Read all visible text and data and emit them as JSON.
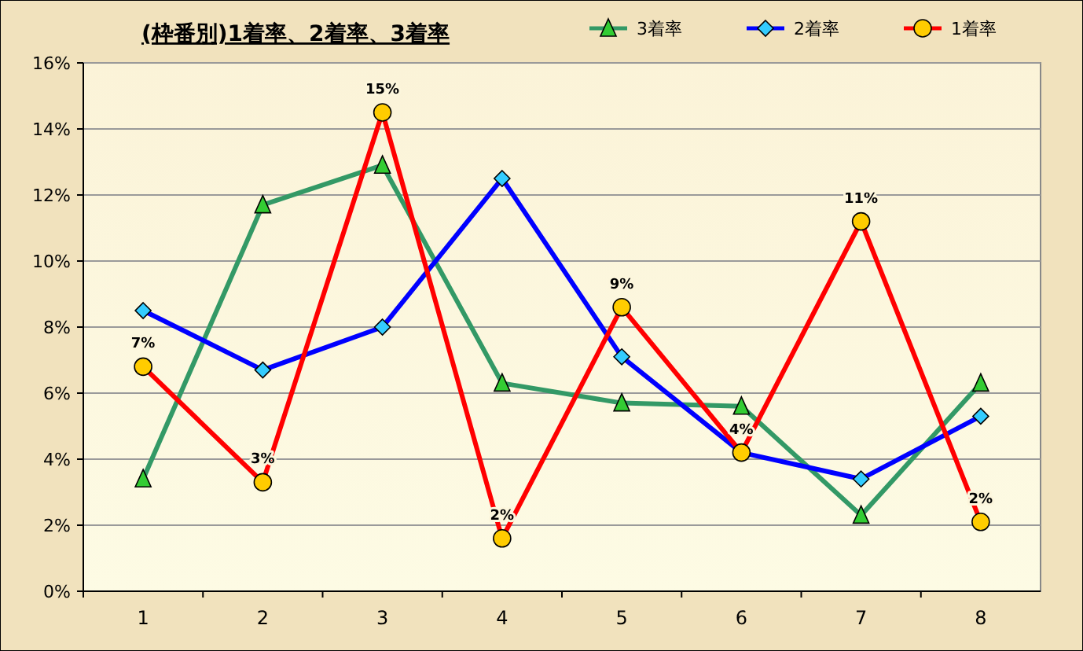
{
  "chart_data": {
    "type": "line",
    "title": "(枠番別)1着率、2着率、3着率",
    "categories": [
      "1",
      "2",
      "3",
      "4",
      "5",
      "6",
      "7",
      "8"
    ],
    "ylim": [
      0,
      16
    ],
    "yticks": [
      {
        "value": 0,
        "label": "0%"
      },
      {
        "value": 2,
        "label": "2%"
      },
      {
        "value": 4,
        "label": "4%"
      },
      {
        "value": 6,
        "label": "6%"
      },
      {
        "value": 8,
        "label": "8%"
      },
      {
        "value": 10,
        "label": "10%"
      },
      {
        "value": 12,
        "label": "12%"
      },
      {
        "value": 14,
        "label": "14%"
      },
      {
        "value": 16,
        "label": "16%"
      }
    ],
    "grid": "y",
    "legend": "top right",
    "line_style": "solid",
    "series": [
      {
        "name": "3着率",
        "color": "#339966",
        "marker": "triangle",
        "values": [
          3.4,
          11.7,
          12.9,
          6.3,
          5.7,
          5.6,
          2.3,
          6.3
        ]
      },
      {
        "name": "2着率",
        "color": "#0000ff",
        "marker": "diamond",
        "values": [
          8.5,
          6.7,
          8.0,
          12.5,
          7.1,
          4.2,
          3.4,
          5.3
        ]
      },
      {
        "name": "1着率",
        "color": "#ff0000",
        "marker": "circle",
        "values": [
          6.8,
          3.3,
          14.5,
          1.6,
          8.6,
          4.2,
          11.2,
          2.1
        ],
        "value_labels": [
          "7%",
          "3%",
          "15%",
          "2%",
          "9%",
          "4%",
          "11%",
          "2%"
        ]
      }
    ]
  }
}
